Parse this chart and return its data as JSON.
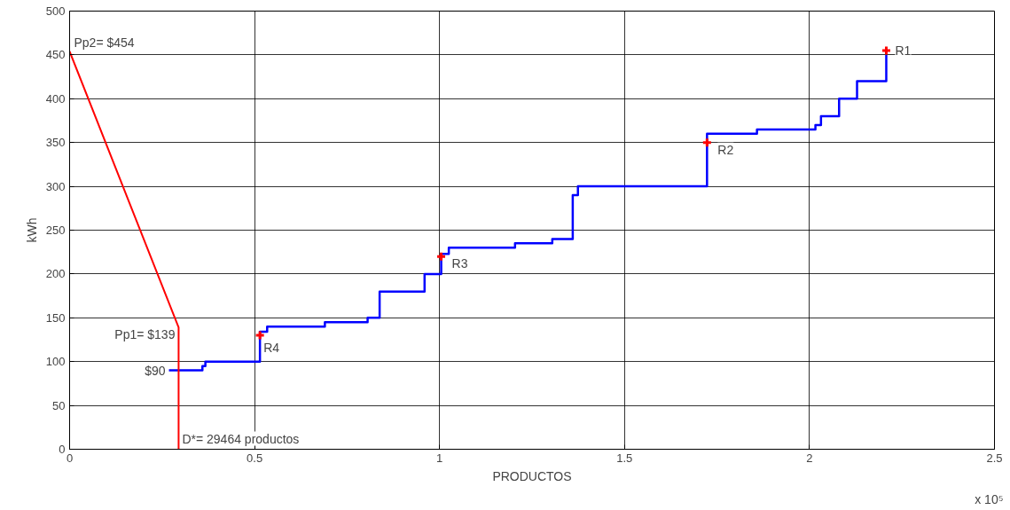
{
  "chart_data": {
    "type": "line",
    "xlabel": "PRODUCTOS",
    "ylabel": "kWh",
    "xlim": [
      0,
      2.5
    ],
    "ylim": [
      0,
      500
    ],
    "xticks": [
      0,
      0.5,
      1,
      1.5,
      2,
      2.5
    ],
    "yticks": [
      0,
      50,
      100,
      150,
      200,
      250,
      300,
      350,
      400,
      450,
      500
    ],
    "grid": true,
    "series": [
      {
        "type": "step",
        "color": "#0000ff",
        "x": [
          0.2685,
          0.359,
          0.367,
          0.5145,
          0.534,
          0.69,
          0.8055,
          0.838,
          0.9595,
          1.0044,
          1.025,
          1.204,
          1.3047,
          1.36,
          1.374,
          1.723,
          1.858,
          2.016,
          2.031,
          2.08,
          2.1285,
          2.2075
        ],
        "values": [
          90,
          95,
          100,
          134,
          140,
          145,
          150,
          180,
          200,
          223,
          230,
          235,
          240,
          290,
          300,
          360,
          365,
          370,
          380,
          400,
          420,
          450
        ]
      },
      {
        "color": "#ff0000",
        "x": [
          0,
          0.29464,
          0.29464
        ],
        "values": [
          454,
          139,
          0
        ]
      },
      {
        "type": "scatter",
        "color": "#ff0000",
        "marker": "cross",
        "x": [
          2.2075,
          1.723,
          1.0044,
          0.5145
        ],
        "values": [
          455,
          350,
          220,
          130
        ]
      }
    ],
    "annotations": [
      {
        "text": "Pp2= $454",
        "x": 0,
        "y": 454
      },
      {
        "text": "Pp1= $139",
        "x": 0.29464,
        "y": 139
      },
      {
        "text": "$90",
        "x": 0.2685,
        "y": 90
      },
      {
        "text": "D*= 29464 productos",
        "x": 0.29464,
        "y": 0
      },
      {
        "text": "R1",
        "x": 2.2075,
        "y": 455
      },
      {
        "text": "R2",
        "x": 1.723,
        "y": 350
      },
      {
        "text": "R3",
        "x": 1.0044,
        "y": 220
      },
      {
        "text": "R4",
        "x": 0.5145,
        "y": 130
      },
      "x 10⁵"
    ]
  }
}
